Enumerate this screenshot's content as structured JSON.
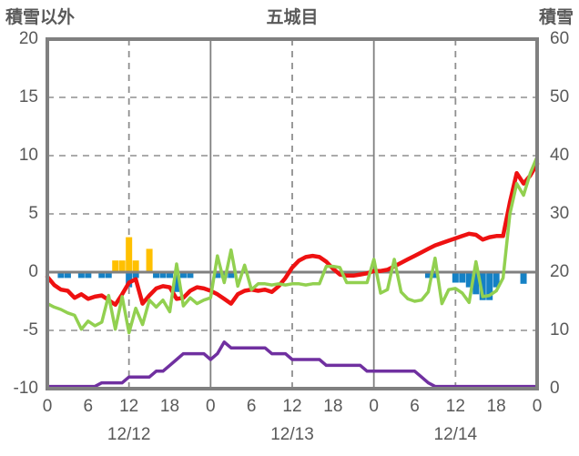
{
  "header": {
    "left_axis_title": "積雪以外",
    "chart_title": "五城目",
    "right_axis_title": "積雪"
  },
  "colors": {
    "text": "#595959",
    "axis_frame": "#808080",
    "gridline": "#8f8f8f",
    "zero_line": "#808080",
    "red_line": "#ee1111",
    "green_line": "#92d050",
    "purple_line": "#7030a0",
    "blue_bars": "#1581c5",
    "orange_bars": "#ffc000"
  },
  "chart_data": {
    "type": "line",
    "title": "五城目",
    "x_range_hours": [
      0,
      72
    ],
    "grid": "dashed horizontal at left-axis 15,10,5,-5; solid zero line; dashed vertical at each 12:00; solid vertical at each 00:00",
    "legend_position": "none",
    "x_axis": {
      "hour_tick_labels": [
        "0",
        "6",
        "12",
        "18",
        "0",
        "6",
        "12",
        "18",
        "0",
        "6",
        "12",
        "18",
        "0"
      ],
      "hour_tick_positions": [
        0,
        6,
        12,
        18,
        24,
        30,
        36,
        42,
        48,
        54,
        60,
        66,
        72
      ],
      "date_labels": [
        "12/12",
        "12/13",
        "12/14"
      ],
      "date_label_positions_hours": [
        12,
        36,
        60
      ]
    },
    "left_axis": {
      "title": "積雪以外",
      "tick_labels": [
        "20",
        "15",
        "10",
        "5",
        "0",
        "-5",
        "-10"
      ],
      "ticks": [
        20,
        15,
        10,
        5,
        0,
        -5,
        -10
      ],
      "range": [
        -10,
        20
      ]
    },
    "right_axis": {
      "title": "積雪",
      "tick_labels": [
        "60",
        "50",
        "40",
        "30",
        "20",
        "10",
        "0"
      ],
      "ticks": [
        60,
        50,
        40,
        30,
        20,
        10,
        0
      ],
      "range": [
        0,
        60
      ]
    },
    "series": [
      {
        "name": "red-line",
        "type": "line",
        "axis": "left",
        "color": "#ee1111",
        "values": [
          -0.4,
          -1.1,
          -1.5,
          -1.6,
          -2.2,
          -1.9,
          -2.3,
          -2.1,
          -2.0,
          -2.4,
          -2.8,
          -1.9,
          -0.9,
          -0.6,
          -2.7,
          -2.0,
          -1.4,
          -1.2,
          -1.3,
          -2.3,
          -2.2,
          -1.6,
          -1.3,
          -1.4,
          -1.6,
          -1.9,
          -2.3,
          -2.7,
          -1.9,
          -1.6,
          -1.5,
          -1.6,
          -1.5,
          -1.7,
          -1.2,
          -0.5,
          0.4,
          1.0,
          1.3,
          1.4,
          1.3,
          0.9,
          0.3,
          -0.2,
          -0.3,
          -0.3,
          -0.2,
          -0.1,
          0.1,
          0.1,
          0.2,
          0.5,
          0.8,
          1.1,
          1.4,
          1.7,
          2.0,
          2.3,
          2.5,
          2.7,
          2.9,
          3.1,
          3.3,
          3.2,
          2.8,
          3.0,
          3.1,
          3.1,
          6.0,
          8.5,
          7.6,
          8.3,
          9.3
        ]
      },
      {
        "name": "green-line",
        "type": "line",
        "axis": "left",
        "color": "#92d050",
        "values": [
          -2.7,
          -3.0,
          -3.2,
          -3.5,
          -3.7,
          -4.9,
          -4.2,
          -4.6,
          -4.3,
          -2.0,
          -4.9,
          -2.1,
          -5.2,
          -3.1,
          -4.5,
          -2.4,
          -3.0,
          -2.4,
          -3.4,
          0.7,
          -2.9,
          -2.2,
          -2.7,
          -2.4,
          -2.2,
          1.4,
          -0.9,
          1.9,
          -1.2,
          0.6,
          -1.5,
          -1.0,
          -1.0,
          -1.1,
          -1.0,
          -1.1,
          -1.0,
          -1.0,
          -1.1,
          -1.0,
          -1.0,
          0.5,
          0.5,
          0.4,
          -0.9,
          -0.9,
          -0.9,
          -0.9,
          1.1,
          -1.8,
          -1.5,
          1.1,
          -1.7,
          -2.3,
          -2.5,
          -2.4,
          -1.7,
          1.2,
          -2.7,
          -1.5,
          -1.4,
          -1.8,
          -2.6,
          0.9,
          -2.1,
          -2.0,
          -1.6,
          -0.5,
          5.0,
          7.6,
          6.6,
          8.5,
          9.9
        ]
      },
      {
        "name": "snow-depth-purple-line",
        "type": "line",
        "axis": "right",
        "color": "#7030a0",
        "values": [
          0,
          0,
          0,
          0,
          0,
          0,
          0,
          0,
          1,
          1,
          1,
          1,
          2,
          2,
          2,
          2,
          3,
          3,
          4,
          5,
          6,
          6,
          6,
          6,
          5,
          6,
          8,
          7,
          7,
          7,
          7,
          7,
          7,
          6,
          6,
          6,
          5,
          5,
          5,
          5,
          5,
          4,
          4,
          4,
          4,
          4,
          4,
          3,
          3,
          3,
          3,
          3,
          3,
          3,
          3,
          2,
          1,
          0,
          0,
          0,
          0,
          0,
          0,
          0,
          0,
          0,
          0,
          0,
          0,
          0,
          0,
          0,
          0
        ]
      },
      {
        "name": "blue-bars",
        "type": "bar",
        "axis": "left",
        "color": "#1581c5",
        "values": [
          null,
          null,
          -0.5,
          -0.5,
          null,
          -0.5,
          -0.5,
          null,
          -0.5,
          -0.5,
          null,
          null,
          -1.3,
          -0.5,
          null,
          null,
          -0.5,
          -0.5,
          -0.5,
          -1.7,
          -0.5,
          -0.5,
          null,
          null,
          null,
          -0.5,
          -0.5,
          -0.5,
          null,
          null,
          null,
          null,
          null,
          null,
          null,
          null,
          null,
          null,
          null,
          null,
          null,
          null,
          null,
          null,
          null,
          null,
          null,
          null,
          null,
          null,
          null,
          null,
          null,
          null,
          null,
          null,
          -0.5,
          -0.5,
          null,
          null,
          -0.9,
          -0.9,
          -1.3,
          -1.9,
          -2.4,
          -2.4,
          -1.3,
          null,
          null,
          null,
          -1.0,
          null,
          null
        ]
      },
      {
        "name": "orange-bars",
        "type": "bar",
        "axis": "left",
        "color": "#ffc000",
        "values": [
          null,
          null,
          null,
          null,
          null,
          null,
          null,
          null,
          null,
          null,
          1.0,
          1.0,
          3.0,
          1.0,
          null,
          2.0,
          null,
          null,
          null,
          null,
          null,
          null,
          null,
          null,
          null,
          null,
          null,
          null,
          null,
          null,
          null,
          null,
          null,
          null,
          null,
          null,
          null,
          null,
          null,
          null,
          null,
          null,
          null,
          null,
          null,
          null,
          null,
          null,
          null,
          null,
          null,
          null,
          null,
          null,
          null,
          null,
          null,
          null,
          null,
          null,
          null,
          null,
          null,
          null,
          null,
          null,
          null,
          null,
          null,
          null,
          null,
          null,
          null
        ]
      }
    ]
  }
}
